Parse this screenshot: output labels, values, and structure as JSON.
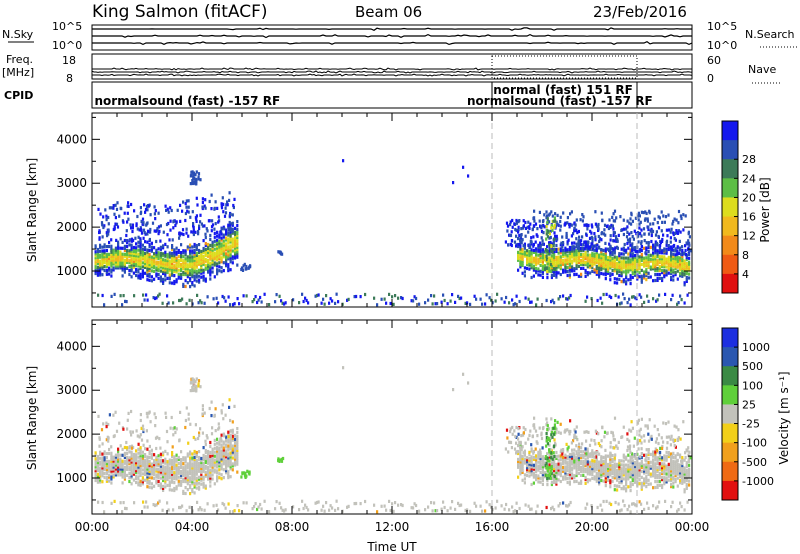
{
  "header": {
    "station": "King Salmon (fitACF)",
    "beam": "Beam 06",
    "date": "23/Feb/2016"
  },
  "strip_labels": {
    "nsky": "N.Sky",
    "freq_line1": "Freq.",
    "freq_line2": "[MHz]",
    "cpid": "CPID",
    "nsearch": "N.Search",
    "nave": "Nave"
  },
  "strip_ticks": {
    "noise_top": "10^5",
    "noise_bottom": "10^0",
    "freq_top": "18",
    "freq_bottom": "8",
    "nave_top": "60",
    "nave_bottom": "0"
  },
  "cpid_labels": [
    {
      "text": "normalsound (fast) -157 RF",
      "start_hour": 0.1
    },
    {
      "text": "normal (fast) 151 RF",
      "start_hour": 16.0
    },
    {
      "text": "normalsound (fast) -157 RF",
      "start_hour": 15.0
    }
  ],
  "chart_data": [
    {
      "type": "heatmap",
      "panel": "power",
      "xlabel": "",
      "ylabel": "Slant Range [km]",
      "xlim": [
        0,
        24
      ],
      "ylim": [
        180,
        4600
      ],
      "x_ticks": [
        "00:00",
        "04:00",
        "08:00",
        "12:00",
        "16:00",
        "20:00",
        "00:00"
      ],
      "y_ticks": [
        1000,
        2000,
        3000,
        4000
      ],
      "colorbar_label": "Power [dB]",
      "colorbar_ticks": [
        "4",
        "8",
        "12",
        "16",
        "20",
        "24",
        "28"
      ],
      "colorbar_colors": [
        "#1418ee",
        "#2a4fb4",
        "#3c7a58",
        "#5dbe45",
        "#dddd1e",
        "#f1b91e",
        "#f28a1a",
        "#ef5a14",
        "#e01010"
      ],
      "vertical_markers_hour": [
        16.0,
        21.8
      ]
    },
    {
      "type": "heatmap",
      "panel": "velocity",
      "xlabel": "Time UT",
      "ylabel": "Slant Range [km]",
      "xlim": [
        0,
        24
      ],
      "ylim": [
        180,
        4600
      ],
      "x_ticks": [
        "00:00",
        "04:00",
        "08:00",
        "12:00",
        "16:00",
        "20:00",
        "00:00"
      ],
      "y_ticks": [
        1000,
        2000,
        3000,
        4000
      ],
      "colorbar_label": "Velocity [m s⁻¹]",
      "colorbar_ticks": [
        "1000",
        "500",
        "100",
        "25",
        "-25",
        "-100",
        "-500",
        "-1000"
      ],
      "colorbar_colors": [
        "#1c2fe0",
        "#2a57b0",
        "#3a8a44",
        "#5fd03a",
        "#c2c2bb",
        "#f2d01a",
        "#f1a01c",
        "#ef6a14",
        "#e21010"
      ],
      "vertical_markers_hour": [
        16.0,
        21.8
      ]
    }
  ]
}
